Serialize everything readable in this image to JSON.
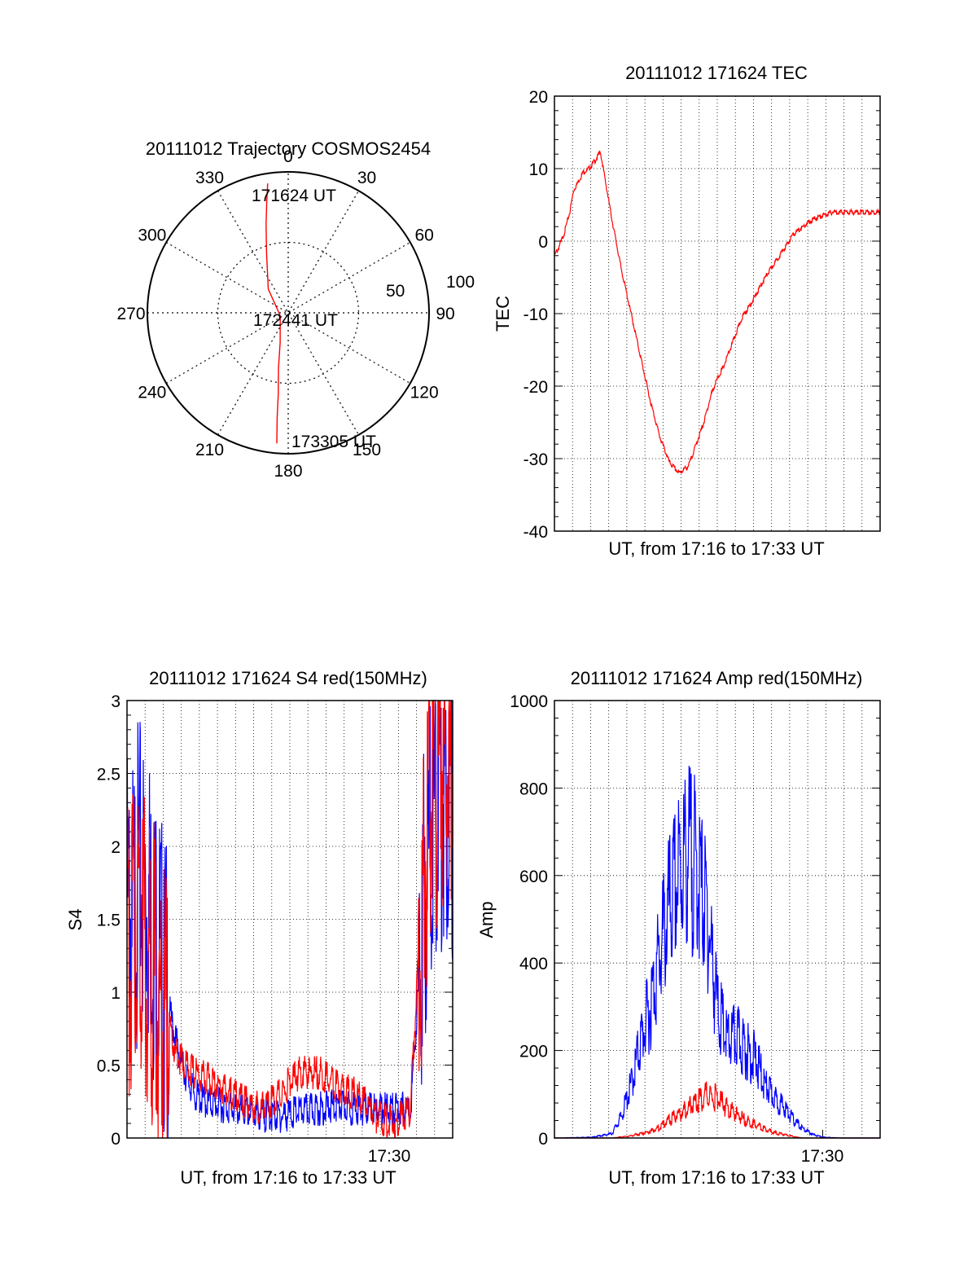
{
  "colors": {
    "red": "#ff0000",
    "blue": "#0000ff",
    "axis": "#000000",
    "grid": "#000000"
  },
  "chart_data": [
    {
      "type": "polar",
      "title": "20111012 Trajectory COSMOS2454",
      "angle_labels": [
        "0",
        "30",
        "60",
        "90",
        "120",
        "150",
        "180",
        "210",
        "240",
        "270",
        "300",
        "330"
      ],
      "radius_labels": [
        "50",
        "100"
      ],
      "annotations": {
        "start": "171624 UT",
        "mid": "172441 UT",
        "end": "173305 UT"
      },
      "series": [
        {
          "color": "red",
          "points": [
            {
              "az": 351,
              "r": 93
            },
            {
              "az": 349,
              "r": 80
            },
            {
              "az": 346,
              "r": 65
            },
            {
              "az": 340,
              "r": 45
            },
            {
              "az": 320,
              "r": 22
            },
            {
              "az": 250,
              "r": 6
            },
            {
              "az": 195,
              "r": 22
            },
            {
              "az": 190,
              "r": 40
            },
            {
              "az": 187,
              "r": 58
            },
            {
              "az": 186,
              "r": 75
            },
            {
              "az": 185,
              "r": 93
            }
          ]
        }
      ]
    },
    {
      "type": "line",
      "title": "20111012 171624 TEC",
      "xlabel": "UT, from 17:16 to 17:33 UT",
      "ylabel": "TEC",
      "ylim": [
        -40,
        20
      ],
      "yticks": [
        "-40",
        "-30",
        "-20",
        "-10",
        "0",
        "10",
        "20"
      ],
      "grid": true,
      "series": [
        {
          "color": "red",
          "x": [
            0,
            0.2,
            0.5,
            0.8,
            1.0,
            1.3,
            1.5,
            1.8,
            2.1,
            2.4,
            3.0,
            3.5,
            4.0,
            4.5,
            5.0,
            5.5,
            6.0,
            6.5,
            7.0,
            7.4,
            7.8,
            8.2,
            8.5,
            8.8,
            9.3,
            9.8,
            10.4,
            11.0,
            11.5,
            12.0,
            12.5,
            13.0,
            13.5,
            14.0,
            14.5,
            15.0,
            15.5,
            16.0,
            16.5,
            17.0
          ],
          "y": [
            -2,
            -1,
            1,
            4,
            7,
            8.5,
            9.5,
            10,
            11,
            12.3,
            3,
            -4,
            -10,
            -16,
            -22,
            -27,
            -30.5,
            -32,
            -31,
            -28,
            -25,
            -21,
            -19,
            -17.5,
            -14,
            -10.5,
            -8,
            -5,
            -3,
            -1,
            1,
            2,
            3,
            3.5,
            4,
            4,
            4,
            4,
            4,
            4
          ]
        }
      ]
    },
    {
      "type": "line",
      "title": "20111012 171624 S4 red(150MHz)",
      "xlabel": "UT, from 17:16 to 17:33 UT",
      "ylabel": "S4",
      "ylim": [
        0,
        3
      ],
      "yticks": [
        "0",
        "0.5",
        "1",
        "1.5",
        "2",
        "2.5",
        "3"
      ],
      "xtick_labels": [
        "17:30"
      ],
      "grid": true,
      "series": [
        {
          "color": "blue",
          "x": [
            0,
            0.3,
            0.6,
            0.9,
            1.2,
            1.6,
            2.0,
            2.5,
            3.0,
            3.5,
            4.0,
            5.0,
            6.0,
            7.0,
            8.0,
            9.0,
            10.0,
            11.0,
            12.0,
            13.0,
            14.0,
            14.8,
            15.2,
            15.6,
            16.0,
            16.5,
            17.0
          ],
          "y": [
            1.6,
            1.5,
            1.8,
            1.7,
            1.6,
            1.3,
            1.0,
            0.7,
            0.45,
            0.3,
            0.25,
            0.22,
            0.18,
            0.16,
            0.15,
            0.18,
            0.2,
            0.22,
            0.2,
            0.2,
            0.2,
            0.2,
            1.0,
            1.8,
            2.2,
            2.4,
            2.3
          ]
        },
        {
          "color": "red",
          "x": [
            0,
            0.3,
            0.6,
            0.9,
            1.2,
            1.6,
            2.0,
            2.5,
            3.0,
            3.5,
            4.0,
            5.0,
            6.0,
            7.0,
            8.0,
            9.0,
            10.0,
            11.0,
            12.0,
            13.0,
            14.0,
            14.8,
            15.2,
            15.6,
            16.0,
            16.5,
            17.0
          ],
          "y": [
            1.2,
            1.4,
            1.5,
            1.3,
            1.2,
            1.0,
            0.85,
            0.6,
            0.5,
            0.45,
            0.42,
            0.35,
            0.25,
            0.2,
            0.3,
            0.45,
            0.45,
            0.35,
            0.3,
            0.15,
            0.1,
            0.2,
            1.2,
            2.0,
            2.5,
            2.6,
            2.5
          ]
        }
      ]
    },
    {
      "type": "line",
      "title": "20111012 171624 Amp red(150MHz)",
      "xlabel": "UT, from 17:16 to 17:33 UT",
      "ylabel": "Amp",
      "ylim": [
        0,
        1000
      ],
      "yticks": [
        "0",
        "200",
        "400",
        "600",
        "800",
        "1000"
      ],
      "xtick_labels": [
        "17:30"
      ],
      "grid": true,
      "series": [
        {
          "color": "blue",
          "x": [
            0,
            2.0,
            3.0,
            3.5,
            4.0,
            4.5,
            5.0,
            5.5,
            6.0,
            6.5,
            7.0,
            7.5,
            8.0,
            8.5,
            9.0,
            9.5,
            10.0,
            10.5,
            11.0,
            11.5,
            12.0,
            12.5,
            13.0,
            13.5,
            14.0,
            15.0,
            17.0
          ],
          "y": [
            0,
            2,
            10,
            50,
            120,
            220,
            300,
            420,
            520,
            600,
            650,
            600,
            500,
            300,
            220,
            230,
            200,
            180,
            120,
            90,
            70,
            40,
            20,
            8,
            2,
            0,
            0
          ]
        },
        {
          "color": "red",
          "x": [
            0,
            3.0,
            4.0,
            5.0,
            5.5,
            6.0,
            6.5,
            7.0,
            7.5,
            8.0,
            8.5,
            9.0,
            9.5,
            10.0,
            10.5,
            11.0,
            11.5,
            12.0,
            12.5,
            13.0,
            17.0
          ],
          "y": [
            0,
            0,
            5,
            15,
            25,
            40,
            55,
            70,
            85,
            100,
            90,
            70,
            55,
            40,
            30,
            20,
            12,
            8,
            3,
            0,
            0
          ]
        }
      ]
    }
  ]
}
